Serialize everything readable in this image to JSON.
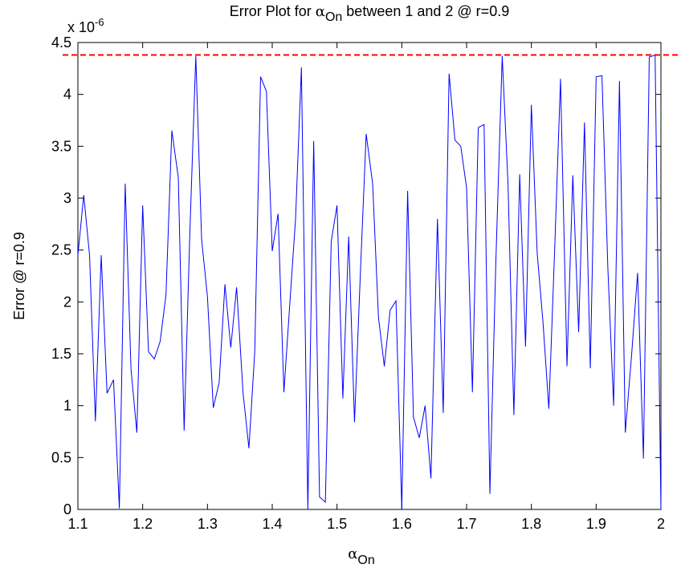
{
  "chart_data": {
    "type": "line",
    "title": [
      "Error Plot for ",
      "α",
      "On",
      " between 1 and 2 @ r=0.9"
    ],
    "xlabel": [
      "α",
      "On"
    ],
    "ylabel": "Error @ r=0.9",
    "scale_label": [
      "x 10",
      "-6"
    ],
    "x": [
      1.1,
      1.109,
      1.118,
      1.127,
      1.136,
      1.145,
      1.155,
      1.164,
      1.173,
      1.182,
      1.191,
      1.2,
      1.209,
      1.218,
      1.227,
      1.236,
      1.245,
      1.255,
      1.264,
      1.273,
      1.282,
      1.291,
      1.3,
      1.309,
      1.318,
      1.327,
      1.336,
      1.345,
      1.355,
      1.364,
      1.373,
      1.382,
      1.391,
      1.4,
      1.409,
      1.418,
      1.427,
      1.436,
      1.445,
      1.455,
      1.464,
      1.473,
      1.482,
      1.491,
      1.5,
      1.509,
      1.518,
      1.527,
      1.536,
      1.545,
      1.555,
      1.564,
      1.573,
      1.582,
      1.591,
      1.6,
      1.609,
      1.618,
      1.627,
      1.636,
      1.645,
      1.655,
      1.664,
      1.673,
      1.682,
      1.691,
      1.7,
      1.709,
      1.718,
      1.727,
      1.736,
      1.745,
      1.755,
      1.764,
      1.773,
      1.782,
      1.791,
      1.8,
      1.809,
      1.818,
      1.827,
      1.836,
      1.845,
      1.855,
      1.864,
      1.873,
      1.882,
      1.891,
      1.9,
      1.909,
      1.918,
      1.927,
      1.936,
      1.945,
      1.955,
      1.964,
      1.973,
      1.982,
      1.991,
      2
    ],
    "series": [
      {
        "color": "#0000ff",
        "values": [
          2.45,
          3.03,
          2.45,
          0.85,
          2.45,
          1.12,
          1.25,
          0.01,
          3.14,
          1.35,
          0.74,
          2.93,
          1.52,
          1.45,
          1.62,
          2.07,
          3.65,
          3.2,
          0.76,
          2.7,
          4.37,
          2.6,
          2.05,
          0.98,
          1.22,
          2.17,
          1.56,
          2.14,
          1.12,
          0.59,
          1.52,
          4.17,
          4.03,
          2.49,
          2.85,
          1.13,
          1.97,
          2.8,
          4.26,
          0,
          3.55,
          0.12,
          0.07,
          2.58,
          2.93,
          1.07,
          2.63,
          0.84,
          2.27,
          3.62,
          3.14,
          1.85,
          1.38,
          1.92,
          2.01,
          0,
          3.07,
          0.89,
          0.69,
          1,
          0.3,
          2.8,
          0.93,
          4.2,
          3.56,
          3.5,
          3.1,
          1.13,
          3.68,
          3.71,
          0.15,
          2.35,
          4.37,
          3.13,
          0.91,
          3.23,
          1.57,
          3.9,
          2.47,
          1.8,
          0.97,
          2.51,
          4.15,
          1.38,
          3.22,
          1.71,
          3.73,
          1.36,
          4.17,
          4.18,
          2.34,
          1,
          4.13,
          0.74,
          1.51,
          2.28,
          0.49,
          4.36,
          4.38,
          0
        ]
      }
    ],
    "reference_line": {
      "value": 4.38,
      "color": "#ff0000"
    },
    "xlim": [
      1.1,
      2
    ],
    "xticks": [
      1.1,
      1.2,
      1.3,
      1.4,
      1.5,
      1.6,
      1.7,
      1.8,
      1.9,
      2
    ],
    "ylim": [
      0,
      4.5
    ],
    "yticks": [
      0,
      0.5,
      1,
      1.5,
      2,
      2.5,
      3,
      3.5,
      4,
      4.5
    ]
  }
}
